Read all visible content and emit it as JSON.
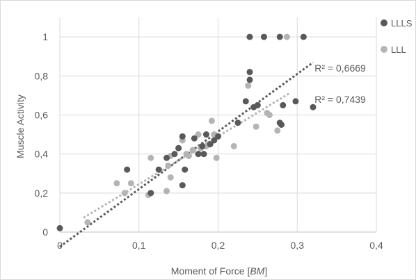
{
  "chart_data": {
    "type": "scatter",
    "title": "",
    "xlabel_main": "Moment of Force ",
    "xlabel_italic": "BM",
    "ylabel": "Muscle Activity",
    "xlim": [
      0,
      0.4
    ],
    "ylim": [
      0,
      1.1
    ],
    "x_ticks": [
      0,
      0.1,
      0.2,
      0.3,
      0.4
    ],
    "x_tick_labels": [
      "0",
      "0,1",
      "0,2",
      "0,3",
      "0,4"
    ],
    "y_ticks": [
      0,
      0.2,
      0.4,
      0.6,
      0.8,
      1.0
    ],
    "y_tick_labels": [
      "0",
      "0,2",
      "0,4",
      "0,6",
      "0,8",
      "1"
    ],
    "grid": true,
    "legend_position": "right",
    "series": [
      {
        "name": "LLLS",
        "color": "#595959",
        "trendline": {
          "type": "linear",
          "x_range": [
            0,
            0.32
          ],
          "slope": 2.95,
          "intercept": -0.075,
          "r2_label": "R² = 0,6669"
        },
        "points": [
          [
            0.0,
            0.02
          ],
          [
            0.085,
            0.32
          ],
          [
            0.115,
            0.2
          ],
          [
            0.125,
            0.32
          ],
          [
            0.135,
            0.38
          ],
          [
            0.145,
            0.4
          ],
          [
            0.15,
            0.43
          ],
          [
            0.155,
            0.49
          ],
          [
            0.155,
            0.24
          ],
          [
            0.158,
            0.32
          ],
          [
            0.17,
            0.48
          ],
          [
            0.175,
            0.4
          ],
          [
            0.18,
            0.44
          ],
          [
            0.182,
            0.4
          ],
          [
            0.185,
            0.5
          ],
          [
            0.19,
            0.45
          ],
          [
            0.195,
            0.47
          ],
          [
            0.2,
            0.49
          ],
          [
            0.225,
            0.56
          ],
          [
            0.235,
            0.67
          ],
          [
            0.24,
            0.82
          ],
          [
            0.24,
            0.78
          ],
          [
            0.245,
            0.64
          ],
          [
            0.25,
            0.65
          ],
          [
            0.24,
            1.0
          ],
          [
            0.258,
            1.0
          ],
          [
            0.278,
            1.0
          ],
          [
            0.308,
            1.0
          ],
          [
            0.278,
            0.56
          ],
          [
            0.28,
            0.55
          ],
          [
            0.282,
            0.65
          ],
          [
            0.298,
            0.67
          ],
          [
            0.32,
            0.64
          ]
        ]
      },
      {
        "name": "LLL",
        "color": "#b4b4b4",
        "trendline": {
          "type": "linear",
          "x_range": [
            0.03,
            0.29
          ],
          "slope": 2.45,
          "intercept": 0.0,
          "r2_label": "R² = 0,7439"
        },
        "points": [
          [
            0.035,
            0.05
          ],
          [
            0.072,
            0.25
          ],
          [
            0.082,
            0.2
          ],
          [
            0.09,
            0.25
          ],
          [
            0.112,
            0.19
          ],
          [
            0.115,
            0.38
          ],
          [
            0.135,
            0.21
          ],
          [
            0.137,
            0.34
          ],
          [
            0.14,
            0.28
          ],
          [
            0.14,
            0.39
          ],
          [
            0.15,
            0.43
          ],
          [
            0.155,
            0.47
          ],
          [
            0.16,
            0.4
          ],
          [
            0.163,
            0.39
          ],
          [
            0.168,
            0.42
          ],
          [
            0.175,
            0.5
          ],
          [
            0.178,
            0.43
          ],
          [
            0.185,
            0.44
          ],
          [
            0.188,
            0.45
          ],
          [
            0.192,
            0.57
          ],
          [
            0.195,
            0.5
          ],
          [
            0.198,
            0.38
          ],
          [
            0.22,
            0.44
          ],
          [
            0.238,
            0.75
          ],
          [
            0.248,
            0.54
          ],
          [
            0.262,
            0.61
          ],
          [
            0.265,
            0.6
          ],
          [
            0.275,
            0.52
          ],
          [
            0.287,
            1.0
          ]
        ]
      }
    ],
    "annotations": [
      {
        "text": "R² = 0,6669",
        "x": 0.322,
        "y": 0.84
      },
      {
        "text": "R² = 0,7439",
        "x": 0.322,
        "y": 0.68
      }
    ]
  }
}
